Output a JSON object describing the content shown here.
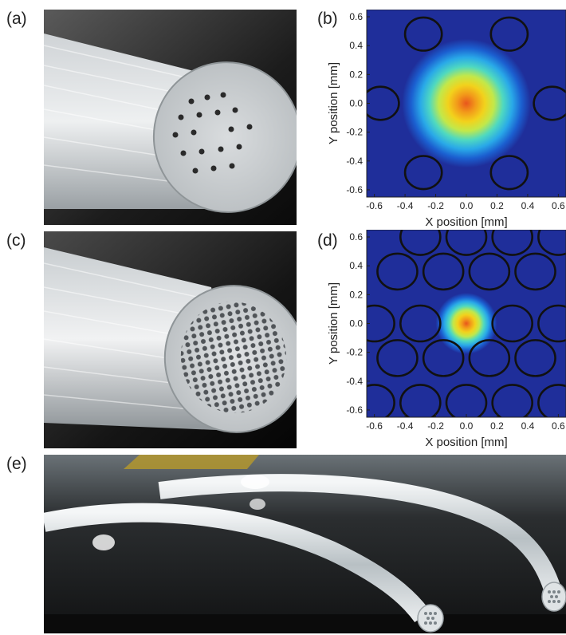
{
  "panels": {
    "a": "(a)",
    "b": "(b)",
    "c": "(c)",
    "d": "(d)",
    "e": "(e)"
  },
  "chart_data": [
    {
      "panel": "(b)",
      "type": "heatmap",
      "xlabel": "X position [mm]",
      "ylabel": "Y position [mm]",
      "xlim": [
        -0.65,
        0.65
      ],
      "ylim": [
        -0.65,
        0.65
      ],
      "x_ticks": [
        "-0.6",
        "-0.4",
        "-0.2",
        "0.0",
        "0.2",
        "0.4",
        "0.6"
      ],
      "y_ticks": [
        "0.6",
        "0.4",
        "0.2",
        "0.0",
        "-0.2",
        "-0.4",
        "-0.6"
      ],
      "mode_center": [
        0.0,
        0.0
      ],
      "mode_radius_mm": 0.42,
      "holes": [
        [
          -0.28,
          0.48
        ],
        [
          0.28,
          0.48
        ],
        [
          -0.56,
          0.0
        ],
        [
          0.56,
          0.0
        ],
        [
          -0.28,
          -0.48
        ],
        [
          0.28,
          -0.48
        ]
      ],
      "hole_radius_mm": 0.12,
      "colormap": [
        "#1f2e9a",
        "#1b5fd0",
        "#29a9e8",
        "#4fd9c0",
        "#c2e84a",
        "#f2d21c",
        "#f29a1a",
        "#e8561c"
      ]
    },
    {
      "panel": "(d)",
      "type": "heatmap",
      "xlabel": "X position [mm]",
      "ylabel": "Y position [mm]",
      "xlim": [
        -0.65,
        0.65
      ],
      "ylim": [
        -0.65,
        0.65
      ],
      "x_ticks": [
        "-0.6",
        "-0.4",
        "-0.2",
        "0.0",
        "0.2",
        "0.4",
        "0.6"
      ],
      "y_ticks": [
        "0.6",
        "0.4",
        "0.2",
        "0.0",
        "-0.2",
        "-0.4",
        "-0.6"
      ],
      "mode_center": [
        0.0,
        0.0
      ],
      "mode_radius_mm": 0.2,
      "holes": [
        [
          -0.3,
          0.6
        ],
        [
          0.0,
          0.6
        ],
        [
          0.3,
          0.6
        ],
        [
          0.6,
          0.6
        ],
        [
          -0.45,
          0.36
        ],
        [
          -0.15,
          0.36
        ],
        [
          0.15,
          0.36
        ],
        [
          0.45,
          0.36
        ],
        [
          -0.6,
          0.0
        ],
        [
          -0.3,
          0.0
        ],
        [
          0.3,
          0.0
        ],
        [
          0.6,
          0.0
        ],
        [
          -0.45,
          -0.24
        ],
        [
          -0.15,
          -0.24
        ],
        [
          0.15,
          -0.24
        ],
        [
          0.45,
          -0.24
        ],
        [
          -0.6,
          -0.55
        ],
        [
          -0.3,
          -0.55
        ],
        [
          0.0,
          -0.55
        ],
        [
          0.3,
          -0.55
        ],
        [
          0.6,
          -0.55
        ]
      ],
      "hole_radius_mm": 0.13,
      "colormap": [
        "#1f2e9a",
        "#1b5fd0",
        "#29a9e8",
        "#4fd9c0",
        "#c2e84a",
        "#f2d21c",
        "#f29a1a",
        "#e8561c"
      ]
    }
  ]
}
